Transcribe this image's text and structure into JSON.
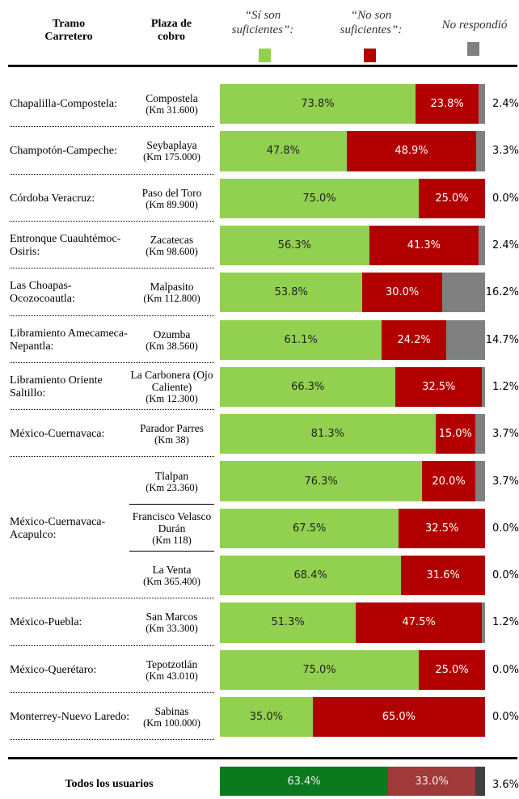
{
  "chart_data": {
    "type": "bar",
    "orientation": "horizontal",
    "stacked": true,
    "xlim": [
      0,
      100
    ],
    "column_headers": [
      "Tramo Carretero",
      "Plaza de cobro"
    ],
    "groups": [
      {
        "name": "Chapalilla-Compostela:",
        "plazas": [
          {
            "name": "Compostela",
            "km": "(Km 31.600)"
          }
        ]
      },
      {
        "name": "Champotón-Campeche:",
        "plazas": [
          {
            "name": "Seybaplaya",
            "km": "(Km 175.000)"
          }
        ]
      },
      {
        "name": "Córdoba Veracruz:",
        "plazas": [
          {
            "name": "Paso del Toro",
            "km": "(Km 89.900)"
          }
        ]
      },
      {
        "name": "Entronque Cuauhtémoc-Osiris:",
        "plazas": [
          {
            "name": "Zacatecas",
            "km": "(Km 98.600)"
          }
        ]
      },
      {
        "name": "Las Choapas-Ocozocoautla:",
        "plazas": [
          {
            "name": "Malpasito",
            "km": "(Km 112.800)"
          }
        ]
      },
      {
        "name": "Libramiento Amecameca-Nepantla:",
        "plazas": [
          {
            "name": "Ozumba",
            "km": "(Km 38.560)"
          }
        ]
      },
      {
        "name": "Libramiento Oriente Saltillo:",
        "plazas": [
          {
            "name": "La Carbonera (Ojo Caliente)",
            "km": "(Km 12.300)"
          }
        ]
      },
      {
        "name": "México-Cuernavaca:",
        "plazas": [
          {
            "name": "Parador Parres",
            "km": "(Km 38)"
          }
        ]
      },
      {
        "name": "México-Cuernavaca-Acapulco:",
        "plazas": [
          {
            "name": "Tlalpan",
            "km": "(Km 23.360)"
          },
          {
            "name": "Francisco Velasco Durán",
            "km": "(Km 118)"
          },
          {
            "name": "La Venta",
            "km": "(Km 365.400)"
          }
        ]
      },
      {
        "name": "México-Puebla:",
        "plazas": [
          {
            "name": "San Marcos",
            "km": "(Km 33.300)"
          }
        ]
      },
      {
        "name": "México-Querétaro:",
        "plazas": [
          {
            "name": "Tepotzotlán",
            "km": "(Km 43.010)"
          }
        ]
      },
      {
        "name": "Monterrey-Nuevo Laredo:",
        "plazas": [
          {
            "name": "Sabinas",
            "km": "(Km 100.000)"
          }
        ]
      }
    ],
    "series": [
      {
        "name": "“Sí son suficientes”:",
        "color": "#92d050",
        "values": [
          73.8,
          47.8,
          75.0,
          56.3,
          53.8,
          61.1,
          66.3,
          81.3,
          76.3,
          67.5,
          68.4,
          51.3,
          75.0,
          35.0
        ],
        "value_labels": [
          "73.8%",
          "47.8%",
          "75.0%",
          "56.3%",
          "53.8%",
          "61.1%",
          "66.3%",
          "81.3%",
          "76.3%",
          "67.5%",
          "68.4%",
          "51.3%",
          "75.0%",
          "35.0%"
        ]
      },
      {
        "name": "“No son suficientes”:",
        "color": "#b20000",
        "values": [
          23.8,
          48.9,
          25.0,
          41.3,
          30.0,
          24.2,
          32.5,
          15.0,
          20.0,
          32.5,
          31.6,
          47.5,
          25.0,
          65.0
        ],
        "value_labels": [
          "23.8%",
          "48.9%",
          "25.0%",
          "41.3%",
          "30.0%",
          "24.2%",
          "32.5%",
          "15.0%",
          "20.0%",
          "32.5%",
          "31.6%",
          "47.5%",
          "25.0%",
          "65.0%"
        ]
      },
      {
        "name": "No respondió",
        "color": "#808080",
        "values": [
          2.4,
          3.3,
          0.0,
          2.4,
          16.2,
          14.7,
          1.2,
          3.7,
          3.7,
          0.0,
          0.0,
          1.2,
          0.0,
          0.0
        ],
        "value_labels": [
          "2.4%",
          "3.3%",
          "0.0%",
          "2.4%",
          "16.2%",
          "14.7%",
          "1.2%",
          "3.7%",
          "3.7%",
          "0.0%",
          "0.0%",
          "1.2%",
          "0.0%",
          "0.0%"
        ]
      }
    ],
    "total": {
      "label": "Todos los usuarios",
      "values": [
        63.4,
        33.0,
        3.6
      ],
      "value_labels": [
        "63.4%",
        "33.0%",
        "3.6%"
      ],
      "colors": [
        "#0b7a1e",
        "#a03a3a",
        "#404040"
      ]
    }
  }
}
